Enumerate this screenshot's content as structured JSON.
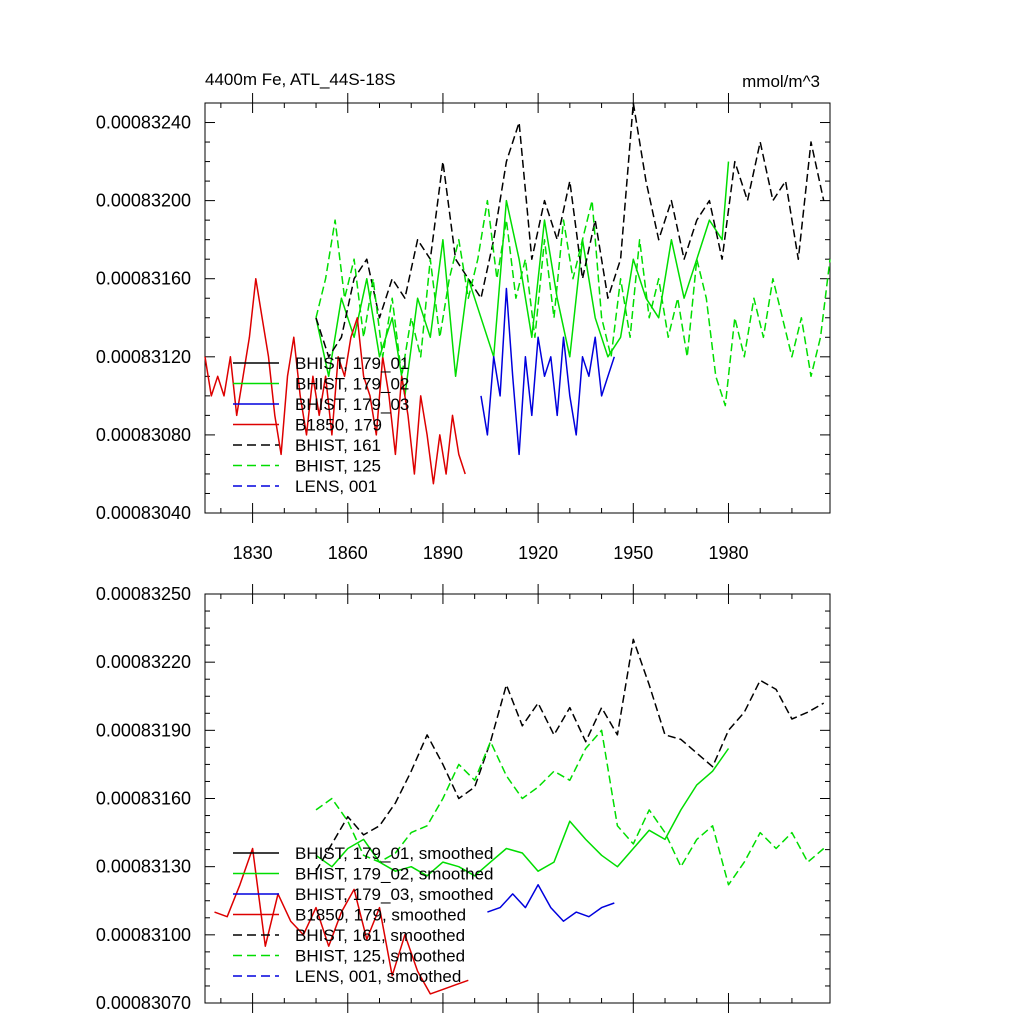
{
  "chart_data": [
    {
      "type": "line",
      "title": "4400m Fe, ATL_44S-18S",
      "units": "mmol/m^3",
      "xlim": [
        1815,
        2012
      ],
      "ylim": [
        0.0008304,
        0.0008325
      ],
      "yticks": [
        "0.00083040",
        "0.00083080",
        "0.00083120",
        "0.00083160",
        "0.00083200",
        "0.00083240"
      ],
      "ytick_values": [
        0.0008304,
        0.0008308,
        0.0008312,
        0.0008316,
        0.000832,
        0.0008324
      ],
      "xticks": [
        "1830",
        "1860",
        "1890",
        "1920",
        "1950",
        "1980"
      ],
      "xtick_values": [
        1830,
        1860,
        1890,
        1920,
        1950,
        1980
      ],
      "grid": false,
      "legend_position": "lower-left",
      "series": [
        {
          "name": "BHIST, 179_01",
          "color": "#000000",
          "dash": "solid",
          "x": [],
          "y": []
        },
        {
          "name": "BHIST, 179_02",
          "color": "#00dd00",
          "dash": "solid",
          "x": [
            1850,
            1854,
            1858,
            1862,
            1866,
            1870,
            1874,
            1878,
            1882,
            1886,
            1890,
            1894,
            1898,
            1902,
            1906,
            1910,
            1914,
            1918,
            1922,
            1926,
            1930,
            1934,
            1938,
            1942,
            1946,
            1950,
            1954,
            1958,
            1962,
            1966,
            1970,
            1974,
            1978,
            1980
          ],
          "y": [
            0.0008314,
            0.0008311,
            0.0008315,
            0.0008313,
            0.0008316,
            0.0008312,
            0.0008314,
            0.000831,
            0.0008315,
            0.0008313,
            0.0008318,
            0.0008311,
            0.0008316,
            0.0008314,
            0.0008312,
            0.000832,
            0.0008317,
            0.0008313,
            0.0008319,
            0.0008315,
            0.0008312,
            0.0008318,
            0.0008314,
            0.0008312,
            0.0008313,
            0.0008317,
            0.0008315,
            0.0008314,
            0.0008318,
            0.0008315,
            0.0008317,
            0.0008319,
            0.0008318,
            0.0008322
          ]
        },
        {
          "name": "BHIST, 179_03",
          "color": "#0000dd",
          "dash": "solid",
          "x": [
            1902,
            1904,
            1906,
            1908,
            1910,
            1912,
            1914,
            1916,
            1918,
            1920,
            1922,
            1924,
            1926,
            1928,
            1930,
            1932,
            1934,
            1936,
            1938,
            1940,
            1942,
            1944
          ],
          "y": [
            0.000831,
            0.0008308,
            0.0008312,
            0.000831,
            0.00083155,
            0.0008311,
            0.0008307,
            0.0008312,
            0.0008309,
            0.0008313,
            0.0008311,
            0.0008312,
            0.0008309,
            0.0008313,
            0.000831,
            0.0008308,
            0.0008312,
            0.0008311,
            0.0008313,
            0.000831,
            0.0008311,
            0.0008312
          ]
        },
        {
          "name": "B1850, 179",
          "color": "#dd0000",
          "dash": "solid",
          "x": [
            1815,
            1817,
            1819,
            1821,
            1823,
            1825,
            1827,
            1829,
            1831,
            1833,
            1835,
            1837,
            1839,
            1841,
            1843,
            1845,
            1847,
            1849,
            1851,
            1853,
            1855,
            1857,
            1859,
            1861,
            1863,
            1865,
            1867,
            1869,
            1871,
            1873,
            1875,
            1877,
            1879,
            1881,
            1883,
            1885,
            1887,
            1889,
            1891,
            1893,
            1895,
            1897
          ],
          "y": [
            0.0008312,
            0.000831,
            0.0008311,
            0.000831,
            0.0008312,
            0.0008309,
            0.0008311,
            0.0008313,
            0.0008316,
            0.0008314,
            0.0008312,
            0.0008309,
            0.0008307,
            0.0008311,
            0.0008313,
            0.000831,
            0.0008308,
            0.0008311,
            0.0008309,
            0.0008311,
            0.0008308,
            0.0008312,
            0.0008311,
            0.0008313,
            0.0008314,
            0.0008311,
            0.000831,
            0.0008308,
            0.0008312,
            0.000831,
            0.0008307,
            0.0008311,
            0.0008309,
            0.0008306,
            0.000831,
            0.0008308,
            0.00083055,
            0.0008308,
            0.0008306,
            0.0008309,
            0.0008307,
            0.0008306
          ]
        },
        {
          "name": "BHIST, 161",
          "color": "#000000",
          "dash": "dashed",
          "x": [
            1850,
            1854,
            1858,
            1862,
            1866,
            1870,
            1874,
            1878,
            1882,
            1886,
            1890,
            1894,
            1898,
            1902,
            1906,
            1910,
            1914,
            1918,
            1922,
            1926,
            1930,
            1934,
            1938,
            1942,
            1946,
            1950,
            1954,
            1958,
            1962,
            1966,
            1970,
            1974,
            1978,
            1982,
            1986,
            1990,
            1994,
            1998,
            2002,
            2006,
            2010
          ],
          "y": [
            0.0008314,
            0.0008312,
            0.0008313,
            0.0008316,
            0.0008317,
            0.0008314,
            0.0008316,
            0.0008315,
            0.0008318,
            0.0008317,
            0.0008322,
            0.0008317,
            0.0008316,
            0.0008315,
            0.0008318,
            0.0008322,
            0.0008324,
            0.0008317,
            0.000832,
            0.0008318,
            0.0008321,
            0.0008316,
            0.0008319,
            0.0008315,
            0.0008317,
            0.0008325,
            0.0008321,
            0.0008318,
            0.000832,
            0.0008317,
            0.0008319,
            0.000832,
            0.0008317,
            0.0008322,
            0.000832,
            0.0008323,
            0.000832,
            0.0008321,
            0.0008317,
            0.0008323,
            0.000832
          ]
        },
        {
          "name": "BHIST, 125",
          "color": "#00dd00",
          "dash": "dashed",
          "x": [
            1850,
            1853,
            1856,
            1859,
            1862,
            1865,
            1868,
            1871,
            1874,
            1877,
            1880,
            1883,
            1886,
            1889,
            1892,
            1895,
            1898,
            1901,
            1904,
            1907,
            1910,
            1913,
            1916,
            1919,
            1922,
            1925,
            1928,
            1931,
            1934,
            1937,
            1940,
            1943,
            1946,
            1949,
            1952,
            1955,
            1958,
            1961,
            1964,
            1967,
            1970,
            1973,
            1976,
            1979,
            1982,
            1985,
            1988,
            1991,
            1994,
            1997,
            2000,
            2003,
            2006,
            2009,
            2012
          ],
          "y": [
            0.0008314,
            0.0008316,
            0.0008319,
            0.0008315,
            0.0008317,
            0.0008313,
            0.0008316,
            0.0008312,
            0.0008315,
            0.0008311,
            0.0008314,
            0.0008312,
            0.0008317,
            0.0008313,
            0.0008316,
            0.0008318,
            0.0008315,
            0.0008317,
            0.000832,
            0.0008316,
            0.0008319,
            0.0008315,
            0.0008317,
            0.0008313,
            0.0008318,
            0.0008314,
            0.0008319,
            0.0008316,
            0.0008318,
            0.000832,
            0.0008314,
            0.0008312,
            0.0008316,
            0.0008313,
            0.0008318,
            0.0008314,
            0.0008316,
            0.0008313,
            0.0008315,
            0.0008312,
            0.0008317,
            0.0008315,
            0.0008311,
            0.00083095,
            0.0008314,
            0.0008312,
            0.0008315,
            0.0008313,
            0.0008316,
            0.0008314,
            0.0008312,
            0.0008314,
            0.0008311,
            0.0008313,
            0.0008317
          ]
        },
        {
          "name": "LENS, 001",
          "color": "#0000dd",
          "dash": "dashed",
          "x": [],
          "y": []
        }
      ]
    },
    {
      "type": "line",
      "title": "",
      "units": "",
      "xlim": [
        1815,
        2012
      ],
      "ylim": [
        0.0008307,
        0.0008325
      ],
      "yticks": [
        "0.00083070",
        "0.00083100",
        "0.00083130",
        "0.00083160",
        "0.00083190",
        "0.00083220",
        "0.00083250"
      ],
      "ytick_values": [
        0.0008307,
        0.000831,
        0.0008313,
        0.0008316,
        0.0008319,
        0.0008322,
        0.0008325
      ],
      "xticks": [],
      "xtick_values": [
        1830,
        1860,
        1890,
        1920,
        1950,
        1980
      ],
      "grid": false,
      "legend_position": "lower-left",
      "series": [
        {
          "name": "BHIST, 179_01, smoothed",
          "color": "#000000",
          "dash": "solid",
          "x": [],
          "y": []
        },
        {
          "name": "BHIST, 179_02, smoothed",
          "color": "#00dd00",
          "dash": "solid",
          "x": [
            1850,
            1855,
            1860,
            1865,
            1870,
            1875,
            1880,
            1885,
            1890,
            1895,
            1900,
            1905,
            1910,
            1915,
            1920,
            1925,
            1930,
            1935,
            1940,
            1945,
            1950,
            1955,
            1960,
            1965,
            1970,
            1975,
            1980
          ],
          "y": [
            0.00083135,
            0.0008313,
            0.00083138,
            0.00083142,
            0.00083132,
            0.00083128,
            0.0008313,
            0.00083126,
            0.00083132,
            0.0008313,
            0.00083126,
            0.00083132,
            0.00083138,
            0.00083136,
            0.00083128,
            0.00083132,
            0.0008315,
            0.00083142,
            0.00083135,
            0.0008313,
            0.00083138,
            0.00083146,
            0.00083142,
            0.00083155,
            0.00083166,
            0.00083172,
            0.00083182
          ]
        },
        {
          "name": "BHIST, 179_03, smoothed",
          "color": "#0000dd",
          "dash": "solid",
          "x": [
            1904,
            1908,
            1912,
            1916,
            1920,
            1924,
            1928,
            1932,
            1936,
            1940,
            1944
          ],
          "y": [
            0.0008311,
            0.00083112,
            0.00083118,
            0.00083112,
            0.00083122,
            0.00083112,
            0.00083106,
            0.0008311,
            0.00083108,
            0.00083112,
            0.00083114
          ]
        },
        {
          "name": "B1850, 179, smoothed",
          "color": "#dd0000",
          "dash": "solid",
          "x": [
            1818,
            1822,
            1826,
            1830,
            1834,
            1838,
            1842,
            1846,
            1850,
            1854,
            1858,
            1862,
            1866,
            1870,
            1874,
            1878,
            1882,
            1886,
            1890,
            1894,
            1898
          ],
          "y": [
            0.0008311,
            0.00083108,
            0.00083122,
            0.00083138,
            0.00083095,
            0.00083118,
            0.00083106,
            0.000831,
            0.00083112,
            0.00083095,
            0.0008311,
            0.0008312,
            0.00083098,
            0.00083112,
            0.00083082,
            0.000831,
            0.00083084,
            0.00083074,
            0.00083076,
            0.00083078,
            0.0008308
          ]
        },
        {
          "name": "BHIST, 161, smoothed",
          "color": "#000000",
          "dash": "dashed",
          "x": [
            1850,
            1855,
            1860,
            1865,
            1870,
            1875,
            1880,
            1885,
            1890,
            1895,
            1900,
            1905,
            1910,
            1915,
            1920,
            1925,
            1930,
            1935,
            1940,
            1945,
            1950,
            1955,
            1960,
            1965,
            1970,
            1975,
            1980,
            1985,
            1990,
            1995,
            2000,
            2005,
            2010
          ],
          "y": [
            0.00083128,
            0.0008314,
            0.00083152,
            0.00083144,
            0.00083148,
            0.00083158,
            0.00083172,
            0.00083188,
            0.00083175,
            0.0008316,
            0.00083165,
            0.00083185,
            0.0008321,
            0.00083192,
            0.00083202,
            0.00083188,
            0.000832,
            0.00083185,
            0.000832,
            0.00083188,
            0.0008323,
            0.0008321,
            0.00083188,
            0.00083186,
            0.0008318,
            0.00083174,
            0.0008319,
            0.00083198,
            0.00083212,
            0.00083208,
            0.00083195,
            0.00083198,
            0.00083202
          ]
        },
        {
          "name": "BHIST, 125, smoothed",
          "color": "#00dd00",
          "dash": "dashed",
          "x": [
            1850,
            1855,
            1860,
            1865,
            1870,
            1875,
            1880,
            1885,
            1890,
            1895,
            1900,
            1905,
            1910,
            1915,
            1920,
            1925,
            1930,
            1935,
            1940,
            1945,
            1950,
            1955,
            1960,
            1965,
            1970,
            1975,
            1980,
            1985,
            1990,
            1995,
            2000,
            2005,
            2010
          ],
          "y": [
            0.00083155,
            0.0008316,
            0.0008315,
            0.00083135,
            0.00083132,
            0.00083136,
            0.00083145,
            0.00083148,
            0.0008316,
            0.00083175,
            0.00083168,
            0.00083185,
            0.0008317,
            0.0008316,
            0.00083165,
            0.00083172,
            0.00083168,
            0.00083182,
            0.0008319,
            0.00083148,
            0.0008314,
            0.00083155,
            0.00083145,
            0.0008313,
            0.00083142,
            0.00083148,
            0.00083122,
            0.00083132,
            0.00083145,
            0.00083138,
            0.00083145,
            0.00083132,
            0.00083138
          ]
        },
        {
          "name": "LENS, 001, smoothed",
          "color": "#0000dd",
          "dash": "dashed",
          "x": [],
          "y": []
        }
      ]
    }
  ]
}
